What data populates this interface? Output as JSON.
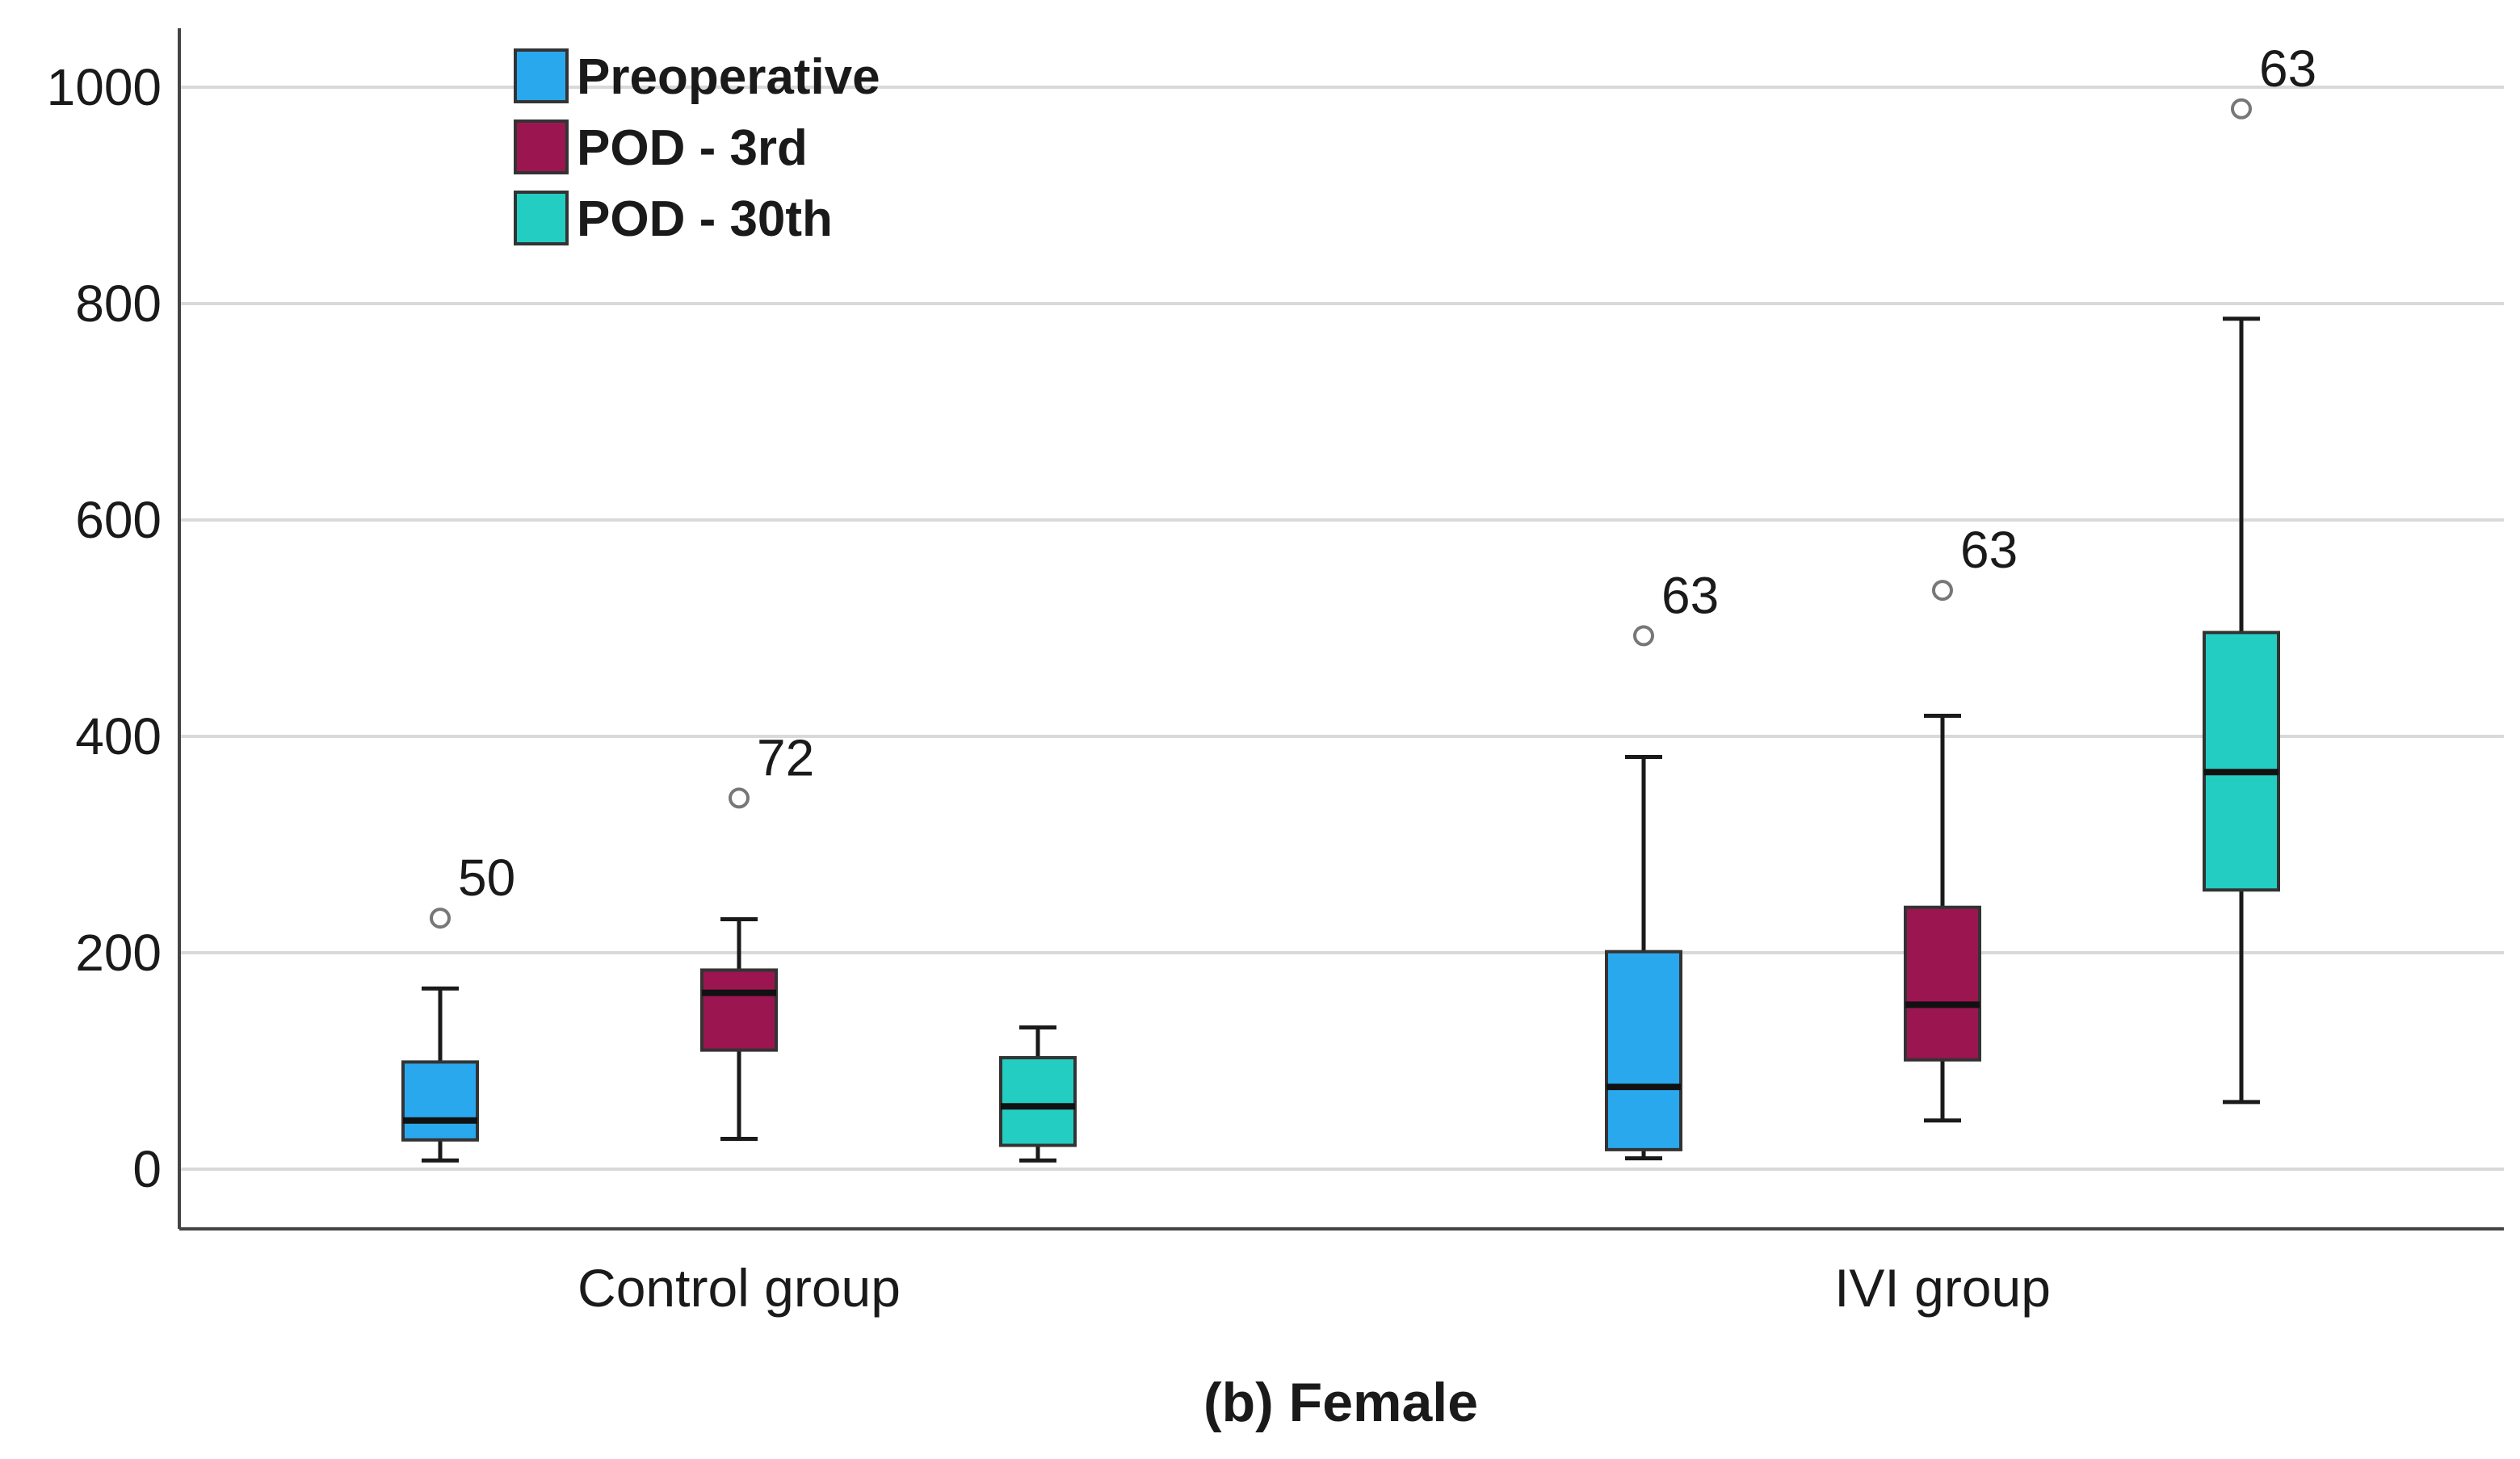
{
  "chart_data": {
    "type": "boxplot",
    "title": "(b) Female",
    "xlabel": "",
    "ylabel": "",
    "ylim": [
      -55,
      1060
    ],
    "yticks": [
      0,
      200,
      400,
      600,
      800,
      1000
    ],
    "grid": "horizontal",
    "legend_position": "top-left",
    "categories": [
      "Control group",
      "IVI group"
    ],
    "series": [
      {
        "name": "Preoperative",
        "color": "#2aa8ee",
        "boxes": [
          {
            "category": "Control group",
            "whisker_low": 8,
            "q1": 27,
            "median": 45,
            "q3": 99,
            "whisker_high": 167,
            "outliers": [
              {
                "value": 232,
                "label": "50"
              }
            ]
          },
          {
            "category": "IVI group",
            "whisker_low": 10,
            "q1": 18,
            "median": 76,
            "q3": 201,
            "whisker_high": 381,
            "outliers": [
              {
                "value": 493,
                "label": "63"
              }
            ]
          }
        ]
      },
      {
        "name": "POD - 3rd",
        "color": "#9b1650",
        "boxes": [
          {
            "category": "Control group",
            "whisker_low": 28,
            "q1": 110,
            "median": 163,
            "q3": 184,
            "whisker_high": 231,
            "outliers": [
              {
                "value": 343,
                "label": "72"
              }
            ]
          },
          {
            "category": "IVI group",
            "whisker_low": 45,
            "q1": 101,
            "median": 152,
            "q3": 242,
            "whisker_high": 419,
            "outliers": [
              {
                "value": 535,
                "label": "63"
              }
            ]
          }
        ]
      },
      {
        "name": "POD - 30th",
        "color": "#23cdc2",
        "boxes": [
          {
            "category": "Control group",
            "whisker_low": 8,
            "q1": 22,
            "median": 58,
            "q3": 103,
            "whisker_high": 131,
            "outliers": []
          },
          {
            "category": "IVI group",
            "whisker_low": 62,
            "q1": 258,
            "median": 367,
            "q3": 496,
            "whisker_high": 786,
            "outliers": [
              {
                "value": 980,
                "label": "63"
              }
            ]
          }
        ]
      }
    ]
  }
}
